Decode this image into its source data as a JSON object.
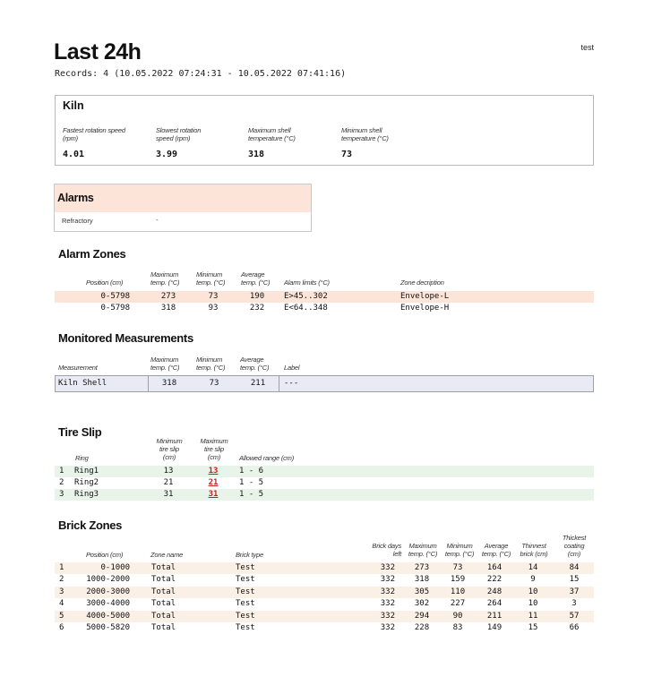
{
  "header": {
    "title": "Last 24h",
    "user": "test",
    "records": "Records: 4 (10.05.2022 07:24:31 - 10.05.2022 07:41:16)"
  },
  "kiln": {
    "title": "Kiln",
    "metrics": [
      {
        "label": "Fastest rotation speed (rpm)",
        "value": "4.01"
      },
      {
        "label": "Slowest rotation speed (rpm)",
        "value": "3.99"
      },
      {
        "label": "Maximum shell temperature (°C)",
        "value": "318"
      },
      {
        "label": "Minimum shell temperature (°C)",
        "value": "73"
      }
    ]
  },
  "alarms": {
    "title": "Alarms",
    "items": [
      {
        "label": "Refractory",
        "value": "-"
      }
    ]
  },
  "alarm_zones": {
    "title": "Alarm Zones",
    "columns": [
      "Position (cm)",
      "Maximum temp. (°C)",
      "Minimum temp. (°C)",
      "Average temp. (°C)",
      "Alarm limits (°C)",
      "Zone decription"
    ],
    "rows": [
      {
        "position": "0-5798",
        "max": "273",
        "min": "73",
        "avg": "190",
        "limits": "E>45..302",
        "desc": "Envelope-L"
      },
      {
        "position": "0-5798",
        "max": "318",
        "min": "93",
        "avg": "232",
        "limits": "E<64..348",
        "desc": "Envelope-H"
      }
    ]
  },
  "monitored": {
    "title": "Monitored Measurements",
    "columns": [
      "Measurement",
      "Maximum temp. (°C)",
      "Minimum temp. (°C)",
      "Average temp. (°C)",
      "Label"
    ],
    "rows": [
      {
        "measurement": "Kiln Shell",
        "max": "318",
        "min": "73",
        "avg": "211",
        "label": "---"
      }
    ]
  },
  "tire_slip": {
    "title": "Tire Slip",
    "columns": [
      "Ring",
      "Minimum tire slip (cm)",
      "Maximum tire slip (cm)",
      "Allowed range (cm)"
    ],
    "rows": [
      {
        "index": "1",
        "ring": "Ring1",
        "min": "13",
        "max": "13",
        "range": "1 - 6"
      },
      {
        "index": "2",
        "ring": "Ring2",
        "min": "21",
        "max": "21",
        "range": "1 - 5"
      },
      {
        "index": "3",
        "ring": "Ring3",
        "min": "31",
        "max": "31",
        "range": "1 - 5"
      }
    ]
  },
  "brick_zones": {
    "title": "Brick Zones",
    "columns": [
      "Position (cm)",
      "Zone name",
      "Brick type",
      "Brick days left",
      "Maximum temp. (°C)",
      "Minimum temp. (°C)",
      "Average temp. (°C)",
      "Thinnest brick (cm)",
      "Thickest coating (cm)"
    ],
    "rows": [
      {
        "index": "1",
        "position": "0-1000",
        "zone": "Total",
        "type": "Test",
        "days": "332",
        "max": "273",
        "min": "73",
        "avg": "164",
        "thin": "14",
        "coat": "84"
      },
      {
        "index": "2",
        "position": "1000-2000",
        "zone": "Total",
        "type": "Test",
        "days": "332",
        "max": "318",
        "min": "159",
        "avg": "222",
        "thin": "9",
        "coat": "15"
      },
      {
        "index": "3",
        "position": "2000-3000",
        "zone": "Total",
        "type": "Test",
        "days": "332",
        "max": "305",
        "min": "110",
        "avg": "248",
        "thin": "10",
        "coat": "37"
      },
      {
        "index": "4",
        "position": "3000-4000",
        "zone": "Total",
        "type": "Test",
        "days": "332",
        "max": "302",
        "min": "227",
        "avg": "264",
        "thin": "10",
        "coat": "3"
      },
      {
        "index": "5",
        "position": "4000-5000",
        "zone": "Total",
        "type": "Test",
        "days": "332",
        "max": "294",
        "min": "90",
        "avg": "211",
        "thin": "11",
        "coat": "57"
      },
      {
        "index": "6",
        "position": "5000-5820",
        "zone": "Total",
        "type": "Test",
        "days": "332",
        "max": "228",
        "min": "83",
        "avg": "149",
        "thin": "15",
        "coat": "66"
      }
    ]
  },
  "colors": {
    "alarm_bg": "#fce4d8",
    "zebra_peach": "#fbf0e6",
    "zebra_green": "#e8f4ea",
    "monitored_bg": "#e8ebf3",
    "alert_text": "#c81e1e"
  }
}
